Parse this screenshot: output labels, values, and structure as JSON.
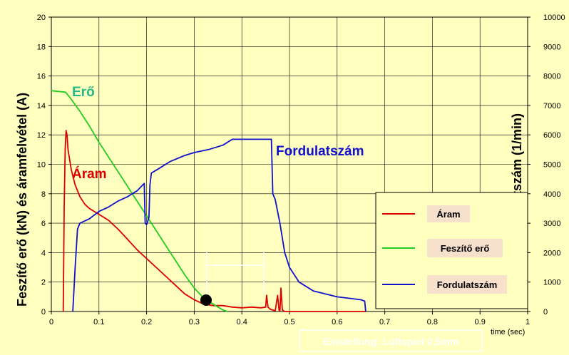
{
  "chart_data": {
    "type": "line",
    "xlabel": "time (sec)",
    "ylabel_left": "Feszítő erő (kN) és áramfelvétel (A)",
    "ylabel_right": "Fordulatszám (1/min)",
    "xlim": [
      0,
      1
    ],
    "ylim_left": [
      0,
      20
    ],
    "ylim_right": [
      0,
      10000
    ],
    "x_ticks": [
      "0",
      "0.1",
      "0.2",
      "0.3",
      "0.4",
      "0.5",
      "0.6",
      "0.7",
      "0.8",
      "0.9",
      "1"
    ],
    "y_left_ticks": [
      "0",
      "2",
      "4",
      "6",
      "8",
      "10",
      "12",
      "14",
      "16",
      "18",
      "20"
    ],
    "y_right_ticks": [
      "0",
      "1000",
      "2000",
      "3000",
      "4000",
      "5000",
      "6000",
      "7000",
      "8000",
      "9000",
      "10000"
    ],
    "grid": true,
    "legend_position": "lower-right",
    "series": [
      {
        "name": "Áram",
        "color": "#dd0000",
        "axis": "left",
        "points": [
          [
            0.025,
            0
          ],
          [
            0.027,
            7
          ],
          [
            0.029,
            11
          ],
          [
            0.031,
            12.3
          ],
          [
            0.033,
            12
          ],
          [
            0.035,
            11
          ],
          [
            0.038,
            10.4
          ],
          [
            0.042,
            9.6
          ],
          [
            0.05,
            8.6
          ],
          [
            0.06,
            7.8
          ],
          [
            0.07,
            7.3
          ],
          [
            0.08,
            7
          ],
          [
            0.09,
            6.8
          ],
          [
            0.1,
            6.6
          ],
          [
            0.12,
            6.2
          ],
          [
            0.14,
            5.6
          ],
          [
            0.16,
            4.9
          ],
          [
            0.18,
            4.2
          ],
          [
            0.2,
            3.6
          ],
          [
            0.22,
            3
          ],
          [
            0.24,
            2.4
          ],
          [
            0.26,
            1.8
          ],
          [
            0.28,
            1.2
          ],
          [
            0.3,
            0.8
          ],
          [
            0.32,
            0.5
          ],
          [
            0.34,
            0.4
          ],
          [
            0.36,
            0.4
          ],
          [
            0.38,
            0.3
          ],
          [
            0.4,
            0.25
          ],
          [
            0.42,
            0.3
          ],
          [
            0.44,
            0.25
          ],
          [
            0.45,
            0.3
          ],
          [
            0.452,
            1.1
          ],
          [
            0.455,
            0.3
          ],
          [
            0.46,
            0.15
          ],
          [
            0.47,
            0.05
          ],
          [
            0.475,
            1.1
          ],
          [
            0.478,
            0.1
          ],
          [
            0.48,
            0.05
          ],
          [
            0.482,
            1.6
          ],
          [
            0.485,
            0.1
          ],
          [
            0.49,
            0
          ],
          [
            0.5,
            0
          ],
          [
            0.66,
            0
          ]
        ]
      },
      {
        "name": "Feszítő erő",
        "color": "#22cc22",
        "axis": "left",
        "points": [
          [
            0,
            15
          ],
          [
            0.03,
            14.9
          ],
          [
            0.04,
            14.5
          ],
          [
            0.06,
            13.6
          ],
          [
            0.08,
            12.6
          ],
          [
            0.1,
            11.5
          ],
          [
            0.12,
            10.5
          ],
          [
            0.14,
            9.5
          ],
          [
            0.16,
            8.5
          ],
          [
            0.18,
            7.5
          ],
          [
            0.2,
            6.5
          ],
          [
            0.22,
            5.5
          ],
          [
            0.24,
            4.5
          ],
          [
            0.26,
            3.5
          ],
          [
            0.28,
            2.5
          ],
          [
            0.3,
            1.6
          ],
          [
            0.32,
            0.9
          ],
          [
            0.34,
            0.5
          ],
          [
            0.36,
            0.1
          ],
          [
            0.37,
            0
          ]
        ]
      },
      {
        "name": "Fordulatszám",
        "color": "#1111cc",
        "axis": "right",
        "points": [
          [
            0.045,
            0
          ],
          [
            0.05,
            1500
          ],
          [
            0.055,
            2800
          ],
          [
            0.06,
            3000
          ],
          [
            0.08,
            3150
          ],
          [
            0.1,
            3400
          ],
          [
            0.12,
            3550
          ],
          [
            0.14,
            3750
          ],
          [
            0.16,
            3900
          ],
          [
            0.18,
            4100
          ],
          [
            0.195,
            4350
          ],
          [
            0.197,
            3000
          ],
          [
            0.2,
            2950
          ],
          [
            0.205,
            3200
          ],
          [
            0.207,
            4300
          ],
          [
            0.21,
            4700
          ],
          [
            0.215,
            4750
          ],
          [
            0.22,
            4800
          ],
          [
            0.25,
            5100
          ],
          [
            0.28,
            5300
          ],
          [
            0.3,
            5400
          ],
          [
            0.33,
            5500
          ],
          [
            0.36,
            5650
          ],
          [
            0.38,
            5850
          ],
          [
            0.4,
            5850
          ],
          [
            0.42,
            5850
          ],
          [
            0.45,
            5850
          ],
          [
            0.462,
            5850
          ],
          [
            0.465,
            4000
          ],
          [
            0.47,
            3800
          ],
          [
            0.48,
            3000
          ],
          [
            0.49,
            2000
          ],
          [
            0.5,
            1500
          ],
          [
            0.52,
            1000
          ],
          [
            0.55,
            700
          ],
          [
            0.6,
            500
          ],
          [
            0.65,
            400
          ],
          [
            0.658,
            350
          ],
          [
            0.66,
            0
          ]
        ]
      }
    ],
    "annotations": {
      "ero_label": "Erő",
      "aram_label": "Áram",
      "fordulat_label": "Fordulatszám",
      "bottom_note": "Einstellung: Luftspiel 0,5mm"
    }
  }
}
